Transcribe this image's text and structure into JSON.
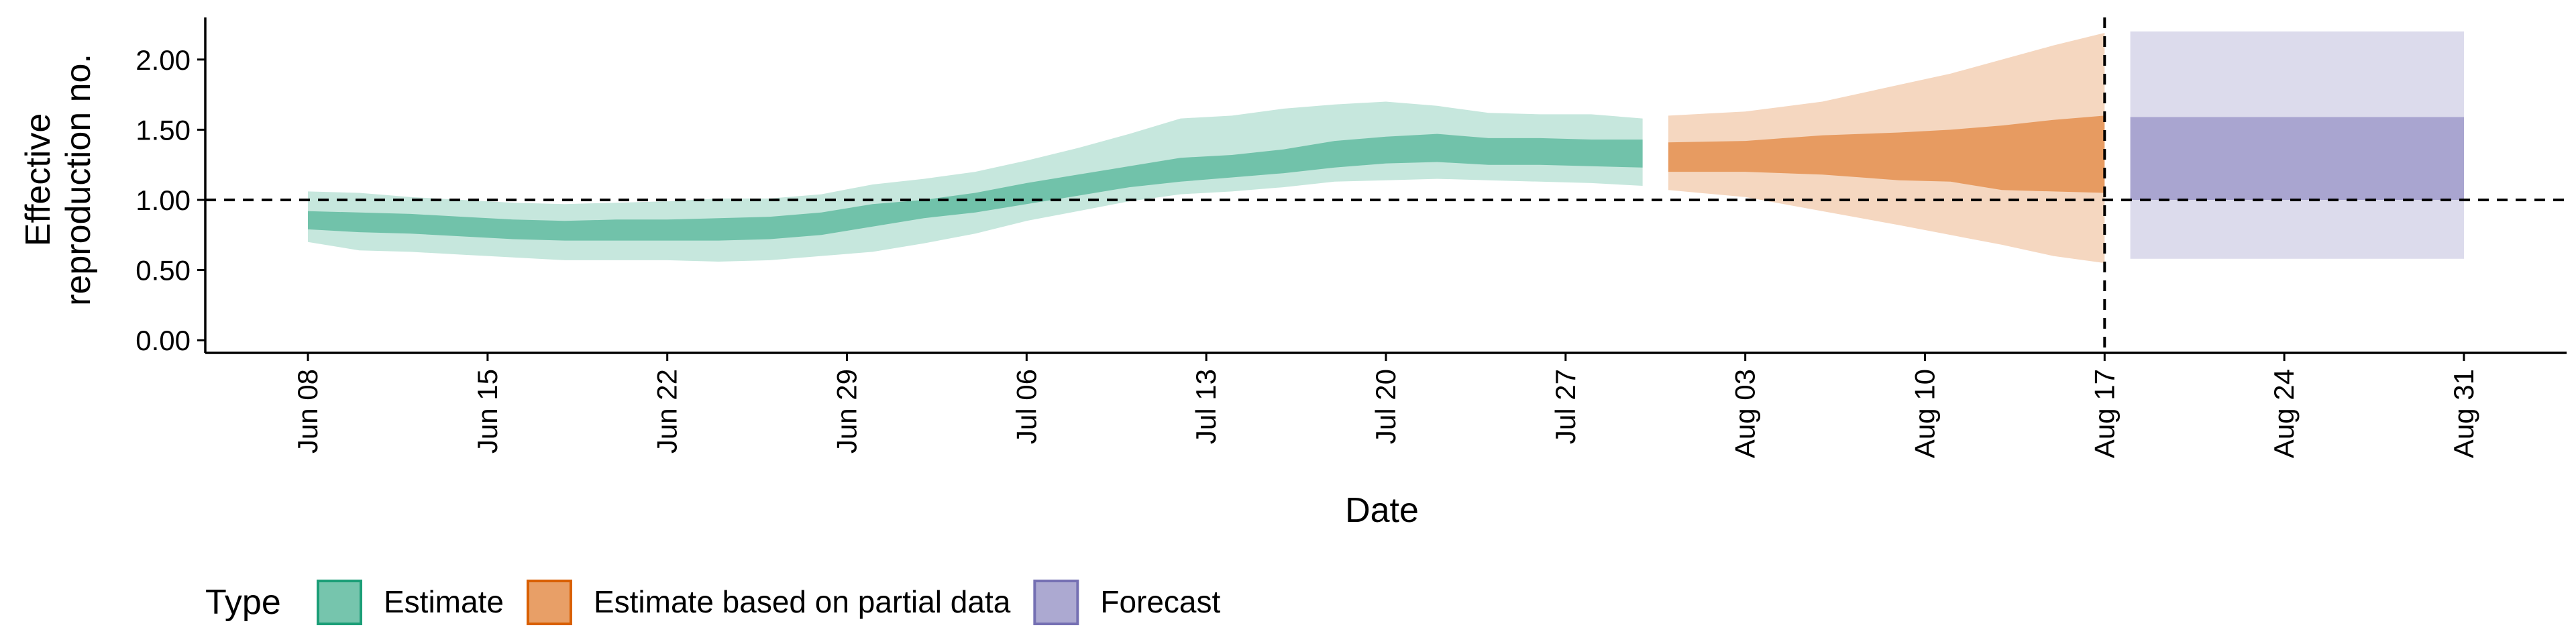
{
  "chart_data": {
    "type": "area",
    "title": "",
    "xlabel": "Date",
    "ylabel_lines": [
      "Effective",
      "reproduction no."
    ],
    "x_tick_labels": [
      "Jun 08",
      "Jun 15",
      "Jun 22",
      "Jun 29",
      "Jul 06",
      "Jul 13",
      "Jul 20",
      "Jul 27",
      "Aug 03",
      "Aug 10",
      "Aug 17",
      "Aug 24",
      "Aug 31"
    ],
    "x_tick_days": [
      0,
      7,
      14,
      21,
      28,
      35,
      42,
      49,
      56,
      63,
      70,
      77,
      84
    ],
    "x_origin_date": "2020-06-08",
    "xlim_days": [
      -4,
      88
    ],
    "y_ticks": [
      0,
      0.5,
      1,
      1.5,
      2
    ],
    "y_tick_labels": [
      "0.00",
      "0.50",
      "1.00",
      "1.50",
      "2.00"
    ],
    "ylim": [
      -0.09,
      2.3
    ],
    "reference_hline": 1.0,
    "reference_vline_day": 70,
    "legend": {
      "title": "Type",
      "position": "bottom-left",
      "items": [
        "Estimate",
        "Estimate based on partial data",
        "Forecast"
      ]
    },
    "colors": {
      "Estimate": "#1b9e77",
      "Estimate based on partial data": "#d95f02",
      "Forecast": "#7570b3"
    },
    "series": [
      {
        "name": "Estimate",
        "points": [
          {
            "day": 0,
            "lo90": 0.7,
            "lo50": 0.79,
            "hi50": 0.92,
            "hi90": 1.06
          },
          {
            "day": 2,
            "lo90": 0.64,
            "lo50": 0.77,
            "hi50": 0.91,
            "hi90": 1.05
          },
          {
            "day": 4,
            "lo90": 0.63,
            "lo50": 0.76,
            "hi50": 0.9,
            "hi90": 1.02
          },
          {
            "day": 6,
            "lo90": 0.61,
            "lo50": 0.74,
            "hi50": 0.88,
            "hi90": 1.0
          },
          {
            "day": 8,
            "lo90": 0.59,
            "lo50": 0.72,
            "hi50": 0.86,
            "hi90": 0.98
          },
          {
            "day": 10,
            "lo90": 0.57,
            "lo50": 0.71,
            "hi50": 0.85,
            "hi90": 0.97
          },
          {
            "day": 12,
            "lo90": 0.57,
            "lo50": 0.71,
            "hi50": 0.86,
            "hi90": 0.98
          },
          {
            "day": 14,
            "lo90": 0.57,
            "lo50": 0.71,
            "hi50": 0.86,
            "hi90": 0.99
          },
          {
            "day": 16,
            "lo90": 0.56,
            "lo50": 0.71,
            "hi50": 0.87,
            "hi90": 1.01
          },
          {
            "day": 18,
            "lo90": 0.57,
            "lo50": 0.72,
            "hi50": 0.88,
            "hi90": 1.01
          },
          {
            "day": 20,
            "lo90": 0.6,
            "lo50": 0.75,
            "hi50": 0.91,
            "hi90": 1.04
          },
          {
            "day": 22,
            "lo90": 0.63,
            "lo50": 0.81,
            "hi50": 0.97,
            "hi90": 1.11
          },
          {
            "day": 24,
            "lo90": 0.69,
            "lo50": 0.87,
            "hi50": 1.0,
            "hi90": 1.15
          },
          {
            "day": 26,
            "lo90": 0.76,
            "lo50": 0.91,
            "hi50": 1.05,
            "hi90": 1.2
          },
          {
            "day": 28,
            "lo90": 0.85,
            "lo50": 0.97,
            "hi50": 1.12,
            "hi90": 1.28
          },
          {
            "day": 30,
            "lo90": 0.92,
            "lo50": 1.03,
            "hi50": 1.18,
            "hi90": 1.37
          },
          {
            "day": 32,
            "lo90": 0.99,
            "lo50": 1.09,
            "hi50": 1.24,
            "hi90": 1.47
          },
          {
            "day": 34,
            "lo90": 1.04,
            "lo50": 1.13,
            "hi50": 1.3,
            "hi90": 1.58
          },
          {
            "day": 36,
            "lo90": 1.06,
            "lo50": 1.16,
            "hi50": 1.32,
            "hi90": 1.6
          },
          {
            "day": 38,
            "lo90": 1.09,
            "lo50": 1.19,
            "hi50": 1.36,
            "hi90": 1.65
          },
          {
            "day": 40,
            "lo90": 1.13,
            "lo50": 1.23,
            "hi50": 1.42,
            "hi90": 1.68
          },
          {
            "day": 42,
            "lo90": 1.14,
            "lo50": 1.26,
            "hi50": 1.45,
            "hi90": 1.7
          },
          {
            "day": 44,
            "lo90": 1.15,
            "lo50": 1.27,
            "hi50": 1.47,
            "hi90": 1.67
          },
          {
            "day": 46,
            "lo90": 1.14,
            "lo50": 1.25,
            "hi50": 1.44,
            "hi90": 1.62
          },
          {
            "day": 48,
            "lo90": 1.13,
            "lo50": 1.25,
            "hi50": 1.44,
            "hi90": 1.61
          },
          {
            "day": 50,
            "lo90": 1.12,
            "lo50": 1.24,
            "hi50": 1.43,
            "hi90": 1.61
          },
          {
            "day": 52,
            "lo90": 1.1,
            "lo50": 1.23,
            "hi50": 1.43,
            "hi90": 1.58
          }
        ]
      },
      {
        "name": "Estimate based on partial data",
        "points": [
          {
            "day": 53,
            "lo90": 1.07,
            "lo50": 1.2,
            "hi50": 1.41,
            "hi90": 1.6
          },
          {
            "day": 56,
            "lo90": 1.02,
            "lo50": 1.2,
            "hi50": 1.42,
            "hi90": 1.63
          },
          {
            "day": 59,
            "lo90": 0.92,
            "lo50": 1.18,
            "hi50": 1.46,
            "hi90": 1.7
          },
          {
            "day": 62,
            "lo90": 0.82,
            "lo50": 1.14,
            "hi50": 1.48,
            "hi90": 1.82
          },
          {
            "day": 64,
            "lo90": 0.75,
            "lo50": 1.13,
            "hi50": 1.5,
            "hi90": 1.9
          },
          {
            "day": 66,
            "lo90": 0.68,
            "lo50": 1.07,
            "hi50": 1.53,
            "hi90": 2.0
          },
          {
            "day": 68,
            "lo90": 0.6,
            "lo50": 1.06,
            "hi50": 1.57,
            "hi90": 2.1
          },
          {
            "day": 70,
            "lo90": 0.55,
            "lo50": 1.05,
            "hi50": 1.6,
            "hi90": 2.19
          }
        ]
      },
      {
        "name": "Forecast",
        "points": [
          {
            "day": 71,
            "lo90": 0.58,
            "lo50": 1.0,
            "hi50": 1.59,
            "hi90": 2.2
          },
          {
            "day": 84,
            "lo90": 0.58,
            "lo50": 1.0,
            "hi50": 1.59,
            "hi90": 2.2
          }
        ]
      }
    ]
  }
}
